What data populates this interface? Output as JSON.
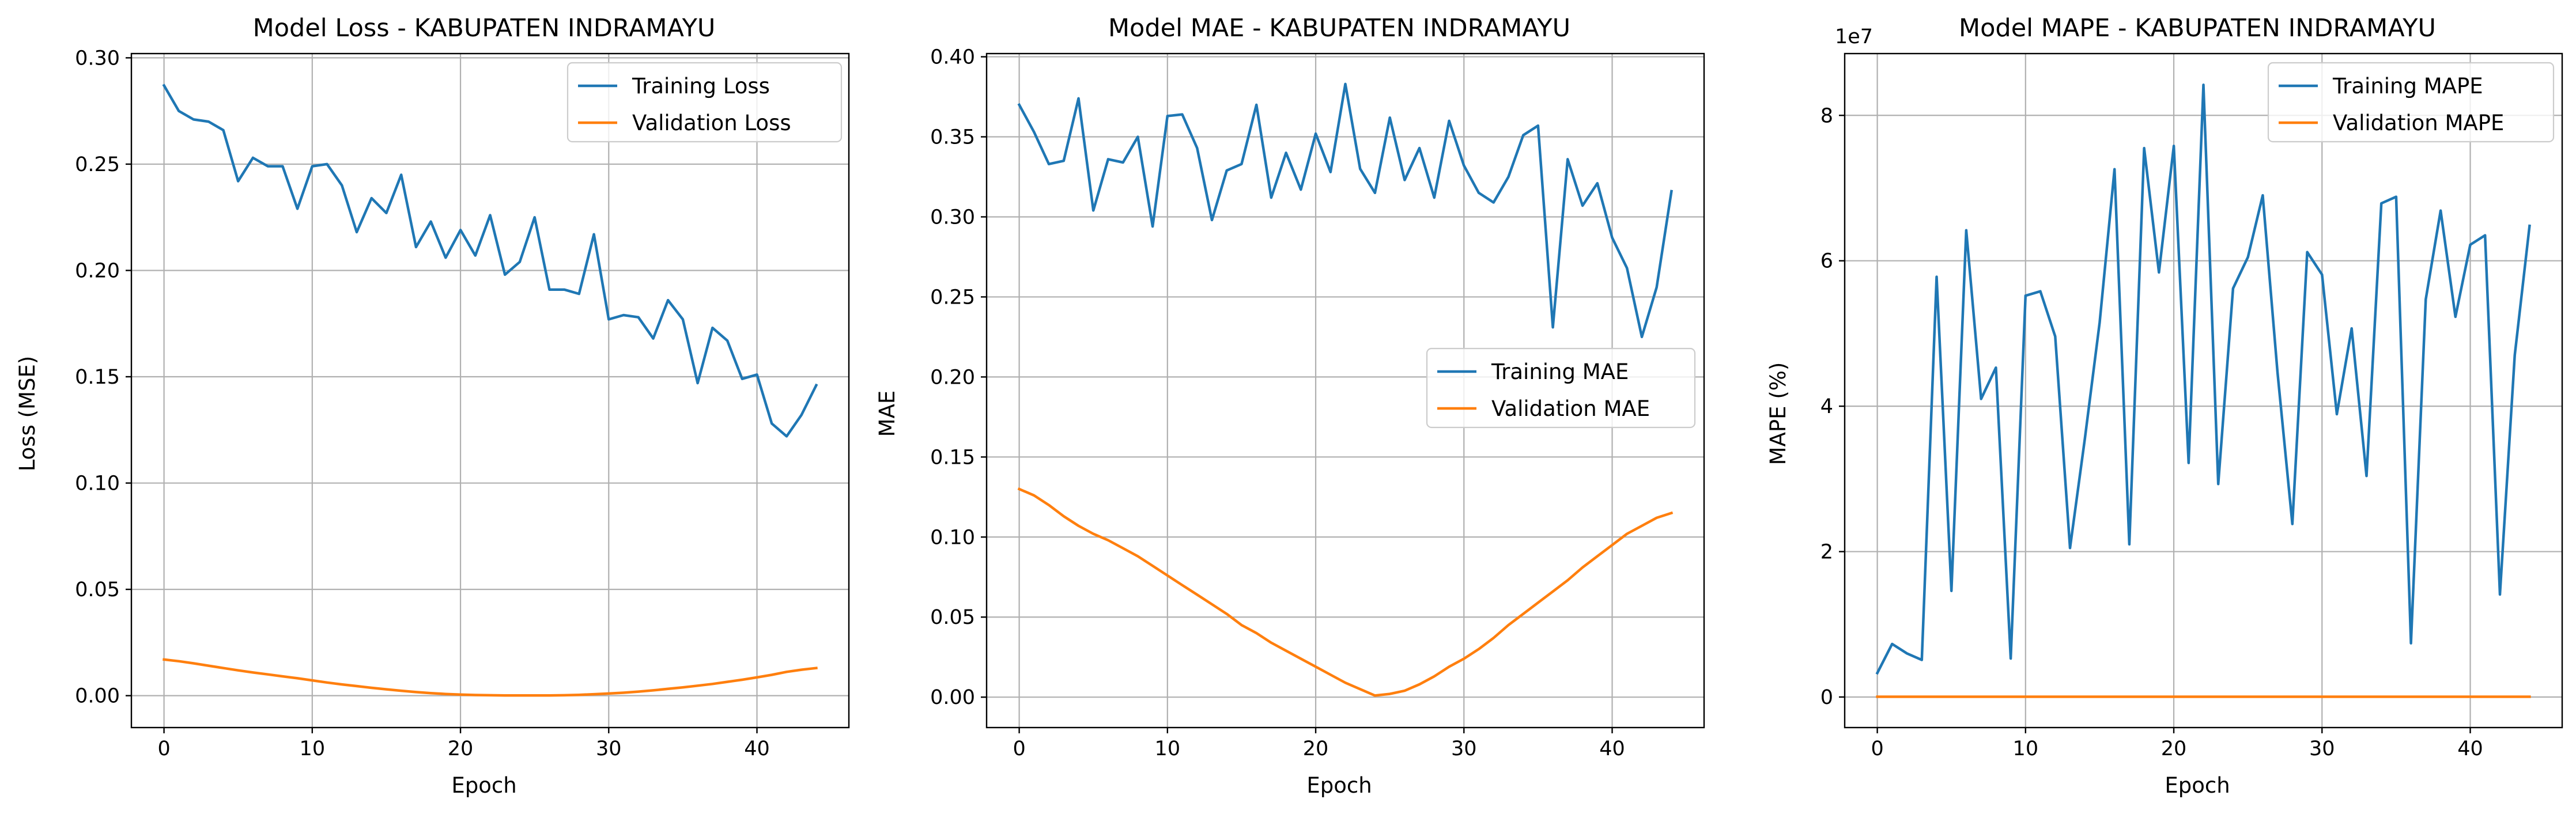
{
  "chart_data": [
    {
      "type": "line",
      "title": "Model Loss - KABUPATEN INDRAMAYU",
      "xlabel": "Epoch",
      "ylabel": "Loss (MSE)",
      "xlim": [
        -2.2,
        46.2
      ],
      "ylim": [
        -0.015,
        0.302
      ],
      "xticks": [
        0,
        10,
        20,
        30,
        40
      ],
      "xtick_labels": [
        "0",
        "10",
        "20",
        "30",
        "40"
      ],
      "yticks": [
        0,
        0.05,
        0.1,
        0.15,
        0.2,
        0.25,
        0.3
      ],
      "ytick_labels": [
        "0.00",
        "0.05",
        "0.10",
        "0.15",
        "0.20",
        "0.25",
        "0.30"
      ],
      "offset_text": "",
      "grid": true,
      "legend_position": "top-right",
      "series": [
        {
          "name": "Training Loss",
          "color": "#1f77b4",
          "values": [
            0.287,
            0.275,
            0.271,
            0.27,
            0.266,
            0.242,
            0.253,
            0.249,
            0.249,
            0.229,
            0.249,
            0.25,
            0.24,
            0.218,
            0.234,
            0.227,
            0.245,
            0.211,
            0.223,
            0.206,
            0.219,
            0.207,
            0.226,
            0.198,
            0.204,
            0.225,
            0.191,
            0.191,
            0.189,
            0.217,
            0.177,
            0.179,
            0.178,
            0.168,
            0.186,
            0.177,
            0.147,
            0.173,
            0.167,
            0.149,
            0.151,
            0.128,
            0.122,
            0.132,
            0.146
          ]
        },
        {
          "name": "Validation Loss",
          "color": "#ff7f0e",
          "values": [
            0.017,
            0.0162,
            0.0152,
            0.0141,
            0.013,
            0.0119,
            0.0109,
            0.01,
            0.0091,
            0.0082,
            0.0072,
            0.0062,
            0.0053,
            0.0045,
            0.0037,
            0.003,
            0.0023,
            0.0017,
            0.0012,
            0.0008,
            0.0005,
            0.0003,
            0.0002,
            0.0001,
            0.0001,
            0.0001,
            0.0001,
            0.0002,
            0.0004,
            0.0007,
            0.001,
            0.0014,
            0.0019,
            0.0025,
            0.0032,
            0.0039,
            0.0047,
            0.0055,
            0.0065,
            0.0075,
            0.0086,
            0.0098,
            0.0112,
            0.0122,
            0.013
          ]
        }
      ]
    },
    {
      "type": "line",
      "title": "Model MAE - KABUPATEN INDRAMAYU",
      "xlabel": "Epoch",
      "ylabel": "MAE",
      "xlim": [
        -2.2,
        46.2
      ],
      "ylim": [
        -0.019,
        0.402
      ],
      "xticks": [
        0,
        10,
        20,
        30,
        40
      ],
      "xtick_labels": [
        "0",
        "10",
        "20",
        "30",
        "40"
      ],
      "yticks": [
        0,
        0.05,
        0.1,
        0.15,
        0.2,
        0.25,
        0.3,
        0.35,
        0.4
      ],
      "ytick_labels": [
        "0.00",
        "0.05",
        "0.10",
        "0.15",
        "0.20",
        "0.25",
        "0.30",
        "0.35",
        "0.40"
      ],
      "offset_text": "",
      "grid": true,
      "legend_position": "center-right",
      "series": [
        {
          "name": "Training MAE",
          "color": "#1f77b4",
          "values": [
            0.37,
            0.353,
            0.333,
            0.335,
            0.374,
            0.304,
            0.336,
            0.334,
            0.35,
            0.294,
            0.363,
            0.364,
            0.343,
            0.298,
            0.329,
            0.333,
            0.37,
            0.312,
            0.34,
            0.317,
            0.352,
            0.328,
            0.383,
            0.33,
            0.315,
            0.362,
            0.323,
            0.343,
            0.312,
            0.36,
            0.332,
            0.315,
            0.309,
            0.325,
            0.351,
            0.357,
            0.231,
            0.336,
            0.307,
            0.321,
            0.287,
            0.268,
            0.225,
            0.256,
            0.316
          ]
        },
        {
          "name": "Validation MAE",
          "color": "#ff7f0e",
          "values": [
            0.13,
            0.126,
            0.12,
            0.113,
            0.107,
            0.102,
            0.098,
            0.093,
            0.088,
            0.082,
            0.076,
            0.07,
            0.064,
            0.058,
            0.052,
            0.045,
            0.04,
            0.034,
            0.029,
            0.024,
            0.019,
            0.014,
            0.009,
            0.005,
            0.001,
            0.002,
            0.004,
            0.008,
            0.013,
            0.019,
            0.024,
            0.03,
            0.037,
            0.045,
            0.052,
            0.059,
            0.066,
            0.073,
            0.081,
            0.088,
            0.095,
            0.102,
            0.107,
            0.112,
            0.115
          ]
        }
      ]
    },
    {
      "type": "line",
      "title": "Model MAPE - KABUPATEN INDRAMAYU",
      "xlabel": "Epoch",
      "ylabel": "MAPE (%)",
      "xlim": [
        -2.2,
        46.2
      ],
      "ylim": [
        -4200000,
        88500000
      ],
      "xticks": [
        0,
        10,
        20,
        30,
        40
      ],
      "xtick_labels": [
        "0",
        "10",
        "20",
        "30",
        "40"
      ],
      "yticks": [
        0,
        20000000,
        40000000,
        60000000,
        80000000
      ],
      "ytick_labels": [
        "0",
        "2",
        "4",
        "6",
        "8"
      ],
      "offset_text": "1e7",
      "grid": true,
      "legend_position": "top-right",
      "series": [
        {
          "name": "Training MAPE",
          "color": "#1f77b4",
          "values": [
            3300000,
            7300000,
            6000000,
            5100000,
            57800000,
            14600000,
            64200000,
            41000000,
            45300000,
            5300000,
            55200000,
            55800000,
            49600000,
            20500000,
            35500000,
            51500000,
            72600000,
            21000000,
            75500000,
            58400000,
            75800000,
            32200000,
            84200000,
            29300000,
            56200000,
            60500000,
            69000000,
            44600000,
            23800000,
            61200000,
            58100000,
            38900000,
            50700000,
            30400000,
            67900000,
            68800000,
            7400000,
            54700000,
            66900000,
            52300000,
            62200000,
            63500000,
            14100000,
            47000000,
            64800000
          ]
        },
        {
          "name": "Validation MAPE",
          "color": "#ff7f0e",
          "values": [
            40000,
            40000,
            40000,
            40000,
            40000,
            40000,
            40000,
            40000,
            40000,
            40000,
            40000,
            40000,
            40000,
            40000,
            40000,
            40000,
            40000,
            40000,
            40000,
            40000,
            40000,
            40000,
            40000,
            40000,
            40000,
            40000,
            40000,
            40000,
            40000,
            40000,
            40000,
            40000,
            40000,
            40000,
            40000,
            40000,
            40000,
            40000,
            40000,
            40000,
            40000,
            40000,
            40000,
            40000,
            40000
          ]
        }
      ]
    }
  ]
}
